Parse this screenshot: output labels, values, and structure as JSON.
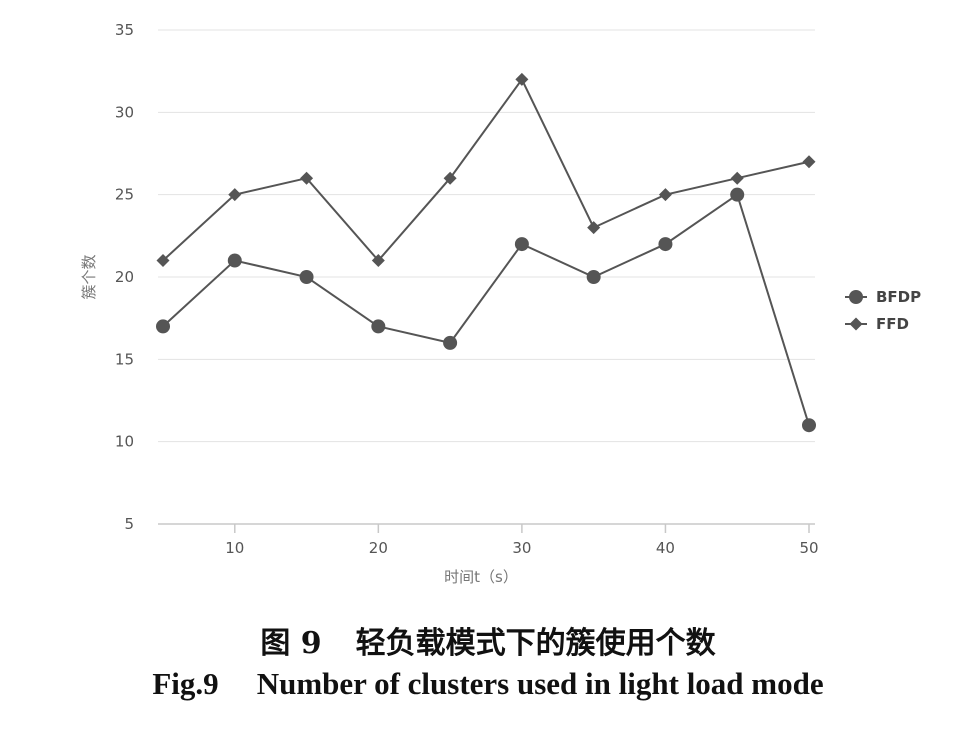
{
  "chart_data": {
    "type": "line",
    "x": [
      5,
      10,
      15,
      20,
      25,
      30,
      35,
      40,
      45,
      50
    ],
    "series": [
      {
        "name": "BFDP",
        "marker": "circle",
        "values": [
          17,
          21,
          20,
          17,
          16,
          22,
          20,
          22,
          25,
          11
        ]
      },
      {
        "name": "FFD",
        "marker": "diamond",
        "values": [
          21,
          25,
          26,
          21,
          26,
          32,
          23,
          25,
          26,
          27
        ]
      }
    ],
    "xlabel": "时间t（s）",
    "ylabel": "簇个数",
    "xlim": [
      5,
      50
    ],
    "ylim": [
      5,
      35
    ],
    "xticks": [
      "10",
      "20",
      "30",
      "40",
      "50"
    ],
    "yticks": [
      "5",
      "10",
      "15",
      "20",
      "25",
      "30",
      "35"
    ],
    "grid": "horizontal",
    "legend": "right",
    "line_color": "#555555"
  },
  "caption": {
    "cn_label": "图 9",
    "cn_text": "轻负载模式下的簇使用个数",
    "en_label": "Fig.9",
    "en_text": "Number of clusters used in light load mode"
  }
}
